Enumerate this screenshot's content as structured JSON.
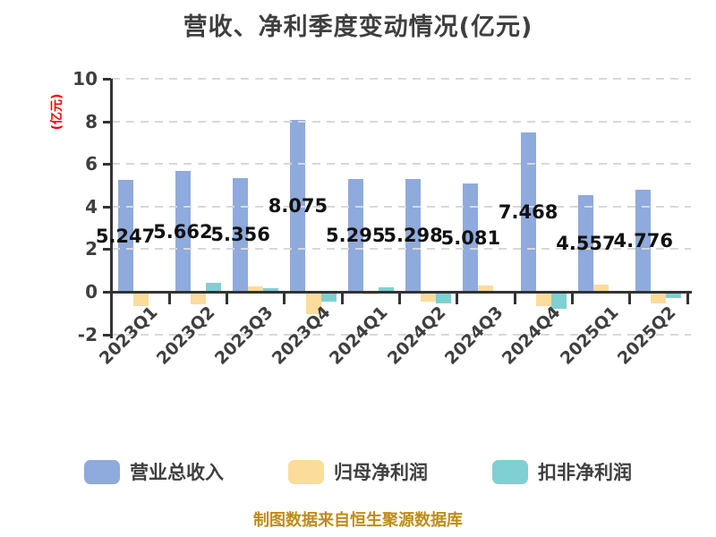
{
  "footer": "制图数据来自恒生聚源数据库",
  "colors": {
    "revenue_bar": "#8FAADC",
    "net_profit_bar": "#FBDC9B",
    "deducted_profit_bar": "#7FD0D2",
    "axis": "#333333",
    "gridline": "#D8D8D8",
    "title_text": "#3F3F3F",
    "ylabel_text": "#FF0000",
    "footer_text": "#BE8C1A"
  },
  "chart_data": {
    "type": "bar",
    "title": "营收、净利季度变动情况(亿元)",
    "xlabel": "",
    "ylabel": "(亿元)",
    "ylim": [
      -2,
      10
    ],
    "yticks": [
      10,
      8,
      6,
      4,
      2,
      0,
      -2
    ],
    "grid": "horizontal-dashed",
    "legend_position": "bottom",
    "categories": [
      "2023Q1",
      "2023Q2",
      "2023Q3",
      "2023Q4",
      "2024Q1",
      "2024Q2",
      "2024Q3",
      "2024Q4",
      "2025Q1",
      "2025Q2"
    ],
    "series": [
      {
        "name": "营业总收入",
        "color": "#8FAADC",
        "values": [
          5.247,
          5.662,
          5.356,
          8.075,
          5.295,
          5.298,
          5.081,
          7.468,
          4.557,
          4.776
        ],
        "labels": [
          "5.247",
          "5.662",
          "5.356",
          "8.075",
          "5.295",
          "5.298",
          "5.081",
          "7.468",
          "4.557",
          "4.776"
        ]
      },
      {
        "name": "归母净利润",
        "color": "#FBDC9B",
        "values": [
          -0.65,
          -0.55,
          0.27,
          -1.0,
          -0.1,
          -0.42,
          0.3,
          -0.63,
          0.35,
          -0.5
        ]
      },
      {
        "name": "扣非净利润",
        "color": "#7FD0D2",
        "values": [
          0,
          0.44,
          0.18,
          -0.43,
          0.23,
          -0.49,
          0.06,
          -0.76,
          0.05,
          -0.25
        ]
      }
    ]
  }
}
